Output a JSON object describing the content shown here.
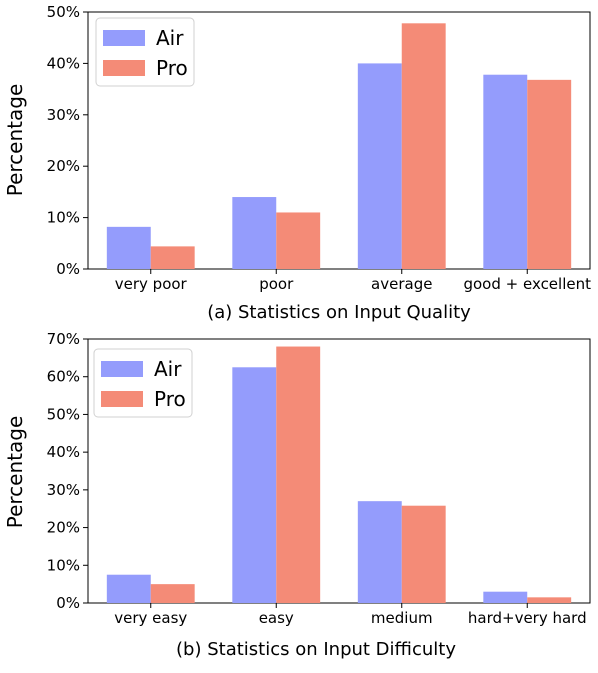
{
  "colors": {
    "air": "#949cfc",
    "pro": "#f48b77"
  },
  "chart_data": [
    {
      "type": "bar",
      "title": "(a) Statistics on Input Quality",
      "ylabel": "Percentage",
      "categories": [
        "very poor",
        "poor",
        "average",
        "good + excellent"
      ],
      "series": [
        {
          "name": "Air",
          "values": [
            8.2,
            14.0,
            40.0,
            37.8
          ]
        },
        {
          "name": "Pro",
          "values": [
            4.4,
            11.0,
            47.8,
            36.8
          ]
        }
      ],
      "ylim": [
        0,
        50
      ],
      "yticks": [
        0,
        10,
        20,
        30,
        40,
        50
      ],
      "ytick_labels": [
        "0%",
        "10%",
        "20%",
        "30%",
        "40%",
        "50%"
      ],
      "legend": "top-left",
      "grid": false
    },
    {
      "type": "bar",
      "title": "(b) Statistics on Input Difficulty",
      "ylabel": "Percentage",
      "categories": [
        "very easy",
        "easy",
        "medium",
        "hard+very hard"
      ],
      "series": [
        {
          "name": "Air",
          "values": [
            7.5,
            62.5,
            27.0,
            3.0
          ]
        },
        {
          "name": "Pro",
          "values": [
            5.0,
            68.0,
            25.8,
            1.5
          ]
        }
      ],
      "ylim": [
        0,
        70
      ],
      "yticks": [
        0,
        10,
        20,
        30,
        40,
        50,
        60,
        70
      ],
      "ytick_labels": [
        "0%",
        "10%",
        "20%",
        "30%",
        "40%",
        "50%",
        "60%",
        "70%"
      ],
      "legend": "top-left",
      "grid": false
    }
  ]
}
